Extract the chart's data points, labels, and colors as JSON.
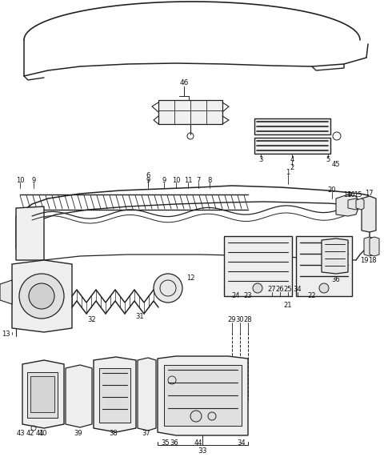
{
  "bg": "#ffffff",
  "lc": "#222222",
  "figw": 4.8,
  "figh": 5.86,
  "dpi": 100,
  "xlim": [
    0,
    480
  ],
  "ylim": [
    0,
    586
  ]
}
